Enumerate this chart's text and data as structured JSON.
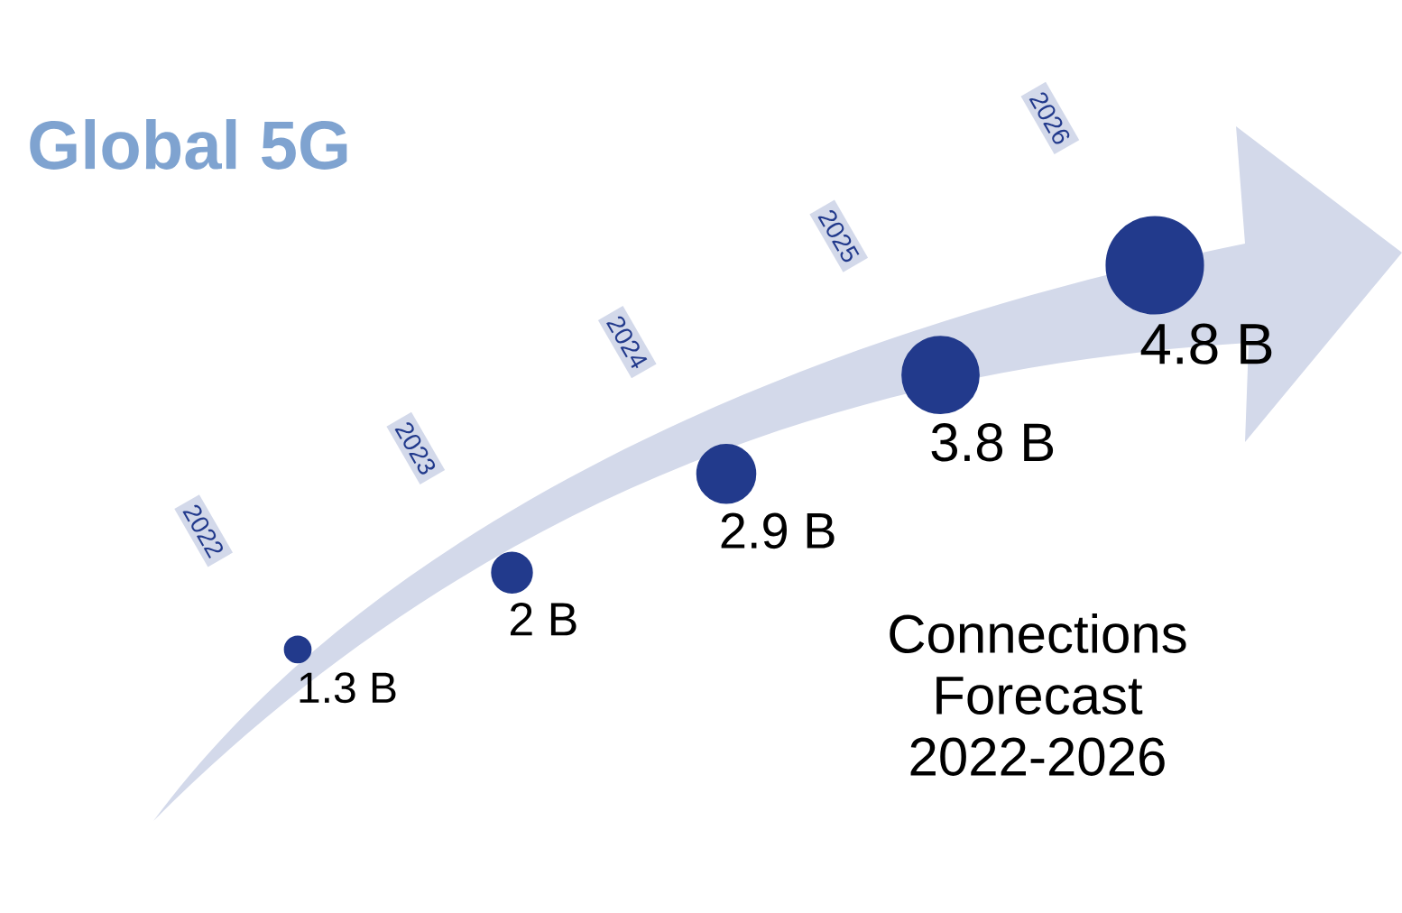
{
  "chart_data": {
    "type": "other",
    "title": "Global 5G",
    "categories": [
      "2022",
      "2023",
      "2024",
      "2025",
      "2026"
    ],
    "values": [
      1.3,
      2,
      2.9,
      3.8,
      4.8
    ],
    "value_labels": [
      "1.3 B",
      "2 B",
      "2.9 B",
      "3.8 B",
      "4.8 B"
    ],
    "color": "#223a8c",
    "annotations": [
      "Connections Forecast 2022-2026"
    ]
  }
}
